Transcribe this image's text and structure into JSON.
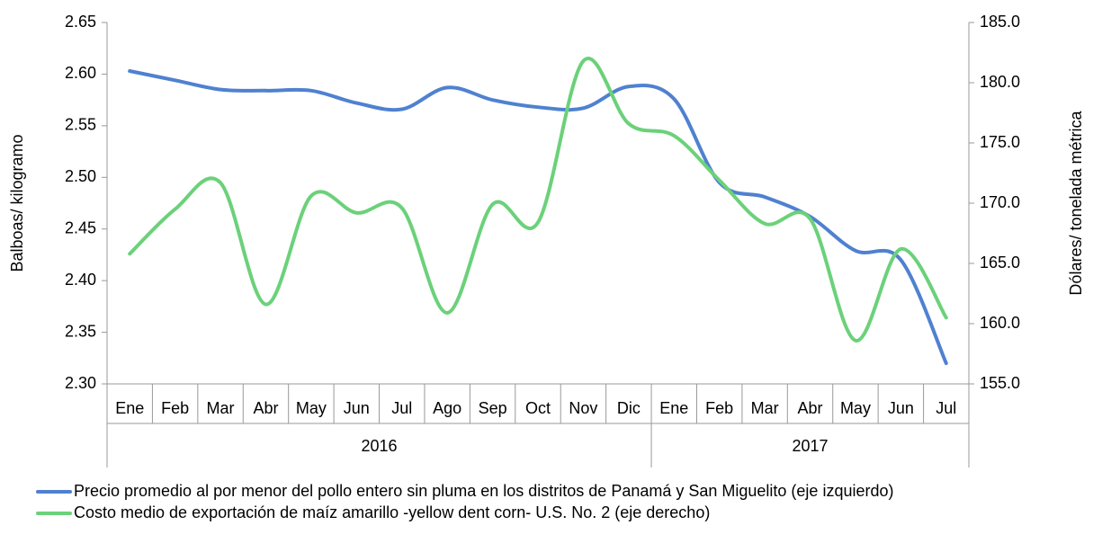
{
  "chart_data": {
    "type": "line",
    "category_groups": [
      {
        "label": "2016",
        "categories": [
          "Ene",
          "Feb",
          "Mar",
          "Abr",
          "May",
          "Jun",
          "Jul",
          "Ago",
          "Sep",
          "Oct",
          "Nov",
          "Dic"
        ]
      },
      {
        "label": "2017",
        "categories": [
          "Ene",
          "Feb",
          "Mar",
          "Abr",
          "May",
          "Jun",
          "Jul"
        ]
      }
    ],
    "series": [
      {
        "name": "Precio promedio al por menor del pollo entero sin pluma en los distritos de Panamá y San Miguelito (eje izquierdo)",
        "color": "#4f81d0",
        "axis": "y",
        "values": [
          2.603,
          2.594,
          2.585,
          2.584,
          2.584,
          2.572,
          2.566,
          2.587,
          2.575,
          2.568,
          2.567,
          2.588,
          2.576,
          2.495,
          2.481,
          2.462,
          2.429,
          2.42,
          2.32
        ]
      },
      {
        "name": "Costo medio de exportación de maíz amarillo -yellow dent corn-  U.S. No. 2 (eje derecho)",
        "color": "#6bd17a",
        "axis": "y2",
        "values": [
          165.8,
          169.5,
          171.7,
          161.6,
          170.6,
          169.2,
          169.6,
          160.9,
          169.9,
          168.4,
          181.8,
          176.6,
          175.6,
          171.9,
          168.3,
          168.7,
          158.6,
          166.2,
          160.5
        ]
      }
    ],
    "ylabel": "Balboas/ kilogramo",
    "y2label": "Dólares/ tonelada métrica",
    "ylim": [
      2.3,
      2.65
    ],
    "yticks": [
      {
        "value": 2.3,
        "label": "2.30"
      },
      {
        "value": 2.35,
        "label": "2.35"
      },
      {
        "value": 2.4,
        "label": "2.40"
      },
      {
        "value": 2.45,
        "label": "2.45"
      },
      {
        "value": 2.5,
        "label": "2.50"
      },
      {
        "value": 2.55,
        "label": "2.55"
      },
      {
        "value": 2.6,
        "label": "2.60"
      },
      {
        "value": 2.65,
        "label": "2.65"
      }
    ],
    "y2lim": [
      155,
      185
    ],
    "y2ticks": [
      {
        "value": 155,
        "label": "155.0"
      },
      {
        "value": 160,
        "label": "160.0"
      },
      {
        "value": 165,
        "label": "165.0"
      },
      {
        "value": 170,
        "label": "170.0"
      },
      {
        "value": 175,
        "label": "175.0"
      },
      {
        "value": 180,
        "label": "180.0"
      },
      {
        "value": 185,
        "label": "185.0"
      }
    ],
    "grid": false,
    "smooth": true,
    "legend": "bottom"
  }
}
